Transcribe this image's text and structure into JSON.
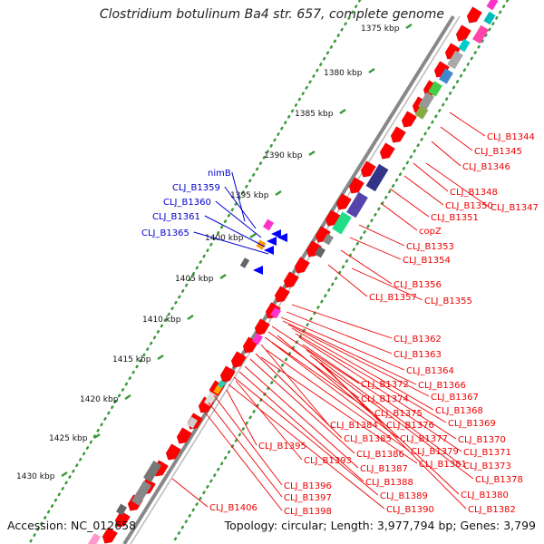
{
  "title": "Clostridium botulinum Ba4 str. 657, complete genome",
  "footer": {
    "accession": "Accession: NC_012658",
    "summary": "Topology: circular; Length: 3,977,794 bp; Genes: 3,799"
  },
  "colors": {
    "forward_gene": "#ff0000",
    "reverse_gene": "#0000ff",
    "backbone": "#888888",
    "tick_dots": "#3a9a3a",
    "forward_label": "#ee0000",
    "reverse_label": "#0000cc"
  },
  "ticks": [
    "1375 kbp",
    "1380 kbp",
    "1385 kbp",
    "1390 kbp",
    "1395 kbp",
    "1400 kbp",
    "1405 kbp",
    "1410 kbp",
    "1415 kbp",
    "1420 kbp",
    "1425 kbp",
    "1430 kbp"
  ],
  "reverse_labels": [
    "nimB",
    "CLJ_B1359",
    "CLJ_B1360",
    "CLJ_B1361",
    "CLJ_B1365"
  ],
  "forward_labels": [
    "CLJ_B1344",
    "CLJ_B1345",
    "CLJ_B1346",
    "CLJ_B1348",
    "CLJ_B1350",
    "CLJ_B1347",
    "CLJ_B1351",
    "copZ",
    "CLJ_B1353",
    "CLJ_B1354",
    "CLJ_B1356",
    "CLJ_B1357",
    "CLJ_B1355",
    "CLJ_B1362",
    "CLJ_B1363",
    "CLJ_B1364",
    "CLJ_B1372",
    "CLJ_B1366",
    "CLJ_B1374",
    "CLJ_B1367",
    "CLJ_B1375",
    "CLJ_B1368",
    "CLJ_B1384",
    "CLJ_B1376",
    "CLJ_B1369",
    "CLJ_B1385",
    "CLJ_B1377",
    "CLJ_B1370",
    "CLJ_B1395",
    "CLJ_B1386",
    "CLJ_B1379",
    "CLJ_B1371",
    "CLJ_B1393",
    "CLJ_B1387",
    "CLJ_B1381",
    "CLJ_B1373",
    "CLJ_B1396",
    "CLJ_B1388",
    "CLJ_B1378",
    "CLJ_B1397",
    "CLJ_B1389",
    "CLJ_B1380",
    "CLJ_B1398",
    "CLJ_B1390",
    "CLJ_B1382",
    "CLJ_B1406"
  ]
}
